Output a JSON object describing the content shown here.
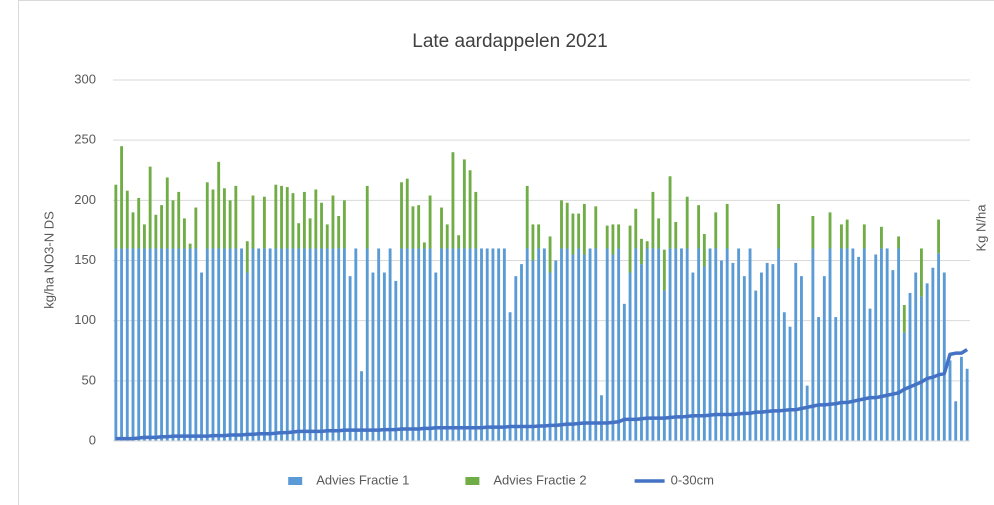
{
  "chart_data": {
    "type": "bar",
    "title": "Late aardappelen 2021",
    "y_label": "kg/ha NO3-N DS",
    "y2_label": "Kg N/ha",
    "ylim": [
      0,
      300
    ],
    "yticks": [
      0,
      50,
      100,
      150,
      200,
      250,
      300
    ],
    "grid": true,
    "stacked": true,
    "legend": "bottom",
    "categories": [
      null,
      null,
      null,
      null,
      null,
      null,
      null,
      null,
      null,
      null,
      null,
      null,
      null,
      null,
      null,
      null,
      null,
      null,
      null,
      null,
      null,
      null,
      null,
      null,
      null,
      null,
      null,
      null,
      null,
      null,
      null,
      null,
      null,
      null,
      null,
      null,
      null,
      null,
      null,
      null,
      null,
      null,
      null,
      null,
      null,
      null,
      null,
      null,
      null,
      null,
      null,
      null,
      null,
      null,
      null,
      null,
      null,
      null,
      null,
      null,
      null,
      null,
      null,
      null,
      null,
      null,
      null,
      null,
      null,
      null,
      null,
      null,
      null,
      null,
      null,
      null,
      null,
      null,
      null,
      null,
      null,
      null,
      null,
      null,
      null,
      null,
      null,
      null,
      null,
      null,
      null,
      null,
      null,
      null,
      null,
      null,
      null,
      null,
      null,
      null,
      null,
      null,
      null,
      null,
      null,
      null,
      null,
      null,
      null,
      null,
      null,
      null,
      null,
      null,
      null,
      null,
      null,
      null,
      null,
      null,
      null,
      null,
      null,
      null,
      null,
      null,
      null,
      null,
      null,
      null,
      null,
      null,
      null,
      null,
      null,
      null,
      null,
      null,
      null,
      null,
      null,
      null,
      null,
      null,
      null,
      null,
      null,
      null,
      null,
      null
    ],
    "series": [
      {
        "name": "Advies Fractie 1",
        "color": "#5b9bd5",
        "kind": "bar",
        "values": [
          160,
          160,
          160,
          160,
          160,
          160,
          160,
          160,
          160,
          160,
          160,
          160,
          160,
          160,
          160,
          140,
          160,
          160,
          160,
          160,
          160,
          160,
          160,
          140,
          160,
          160,
          160,
          160,
          160,
          160,
          160,
          160,
          160,
          160,
          160,
          160,
          160,
          160,
          160,
          160,
          160,
          137,
          160,
          58,
          160,
          140,
          160,
          140,
          160,
          133,
          160,
          160,
          160,
          160,
          160,
          160,
          140,
          160,
          160,
          160,
          160,
          160,
          160,
          160,
          160,
          160,
          160,
          160,
          160,
          107,
          137,
          147,
          160,
          150,
          160,
          160,
          140,
          150,
          160,
          160,
          155,
          160,
          155,
          160,
          160,
          38,
          160,
          155,
          160,
          114,
          140,
          160,
          147,
          160,
          160,
          160,
          125,
          160,
          160,
          160,
          160,
          140,
          160,
          145,
          160,
          160,
          150,
          160,
          148,
          160,
          137,
          160,
          125,
          140,
          148,
          147,
          160,
          107,
          95,
          148,
          137,
          46,
          160,
          103,
          137,
          160,
          103,
          160,
          160,
          160,
          153,
          160,
          110,
          155,
          160,
          160,
          142,
          160,
          90,
          123,
          140,
          120,
          131,
          144,
          156,
          140,
          67,
          33,
          70,
          60
        ]
      },
      {
        "name": "Advies Fractie 2",
        "color": "#70ad47",
        "kind": "bar",
        "values": [
          53,
          85,
          48,
          30,
          42,
          20,
          68,
          28,
          36,
          59,
          40,
          47,
          25,
          4,
          34,
          0,
          55,
          49,
          72,
          50,
          40,
          52,
          0,
          26,
          44,
          0,
          43,
          0,
          53,
          52,
          51,
          46,
          21,
          47,
          25,
          49,
          38,
          20,
          44,
          27,
          40,
          0,
          0,
          0,
          52,
          0,
          0,
          0,
          0,
          0,
          55,
          58,
          35,
          36,
          5,
          44,
          0,
          34,
          20,
          80,
          11,
          74,
          65,
          47,
          0,
          0,
          0,
          0,
          0,
          0,
          0,
          0,
          52,
          30,
          20,
          0,
          30,
          0,
          40,
          38,
          34,
          29,
          42,
          0,
          35,
          0,
          19,
          25,
          20,
          0,
          39,
          33,
          21,
          6,
          47,
          25,
          34,
          60,
          22,
          0,
          43,
          0,
          36,
          27,
          0,
          30,
          0,
          37,
          0,
          0,
          0,
          0,
          0,
          0,
          0,
          0,
          37,
          0,
          0,
          0,
          0,
          0,
          27,
          0,
          0,
          30,
          0,
          20,
          24,
          0,
          0,
          20,
          0,
          0,
          18,
          0,
          0,
          10,
          23,
          0,
          0,
          40,
          0,
          0,
          28,
          0,
          0,
          0,
          0,
          0
        ]
      },
      {
        "name": "0-30cm",
        "color": "#4472c4",
        "kind": "line",
        "values": [
          2,
          2,
          2,
          2,
          2.5,
          3,
          3,
          3,
          3.5,
          3.5,
          4,
          4,
          4,
          4,
          4,
          4,
          4,
          4.5,
          4.5,
          4.5,
          5,
          5,
          5,
          5.5,
          5.5,
          6,
          6,
          6,
          6.5,
          7,
          7,
          7.5,
          8,
          8,
          8,
          8,
          8,
          8.5,
          8.5,
          8.5,
          9,
          9,
          9,
          9,
          9,
          9,
          9,
          9.5,
          9.5,
          9.5,
          10,
          10,
          10,
          10,
          10.5,
          10.5,
          11,
          11,
          11,
          11,
          11,
          11,
          11,
          11,
          11,
          11.5,
          11.5,
          11.5,
          11.5,
          12,
          12,
          12,
          12,
          12,
          12.5,
          12.5,
          13,
          13,
          13.5,
          14,
          14,
          14.5,
          15,
          15,
          15,
          15,
          15,
          15.5,
          16,
          18,
          18,
          18,
          18.5,
          19,
          19,
          19,
          19,
          19.5,
          20,
          20,
          20.5,
          21,
          21,
          21,
          21.5,
          22,
          22,
          22,
          22,
          22.5,
          23,
          23,
          24,
          24,
          24.5,
          25,
          25,
          25.5,
          26,
          26,
          27,
          28,
          29,
          30,
          30,
          30.5,
          31,
          32,
          32,
          33,
          34,
          35,
          36,
          36,
          37,
          38,
          39,
          40,
          43,
          45,
          47,
          49,
          52,
          53,
          55,
          56,
          72,
          73,
          73,
          76
        ]
      }
    ]
  }
}
